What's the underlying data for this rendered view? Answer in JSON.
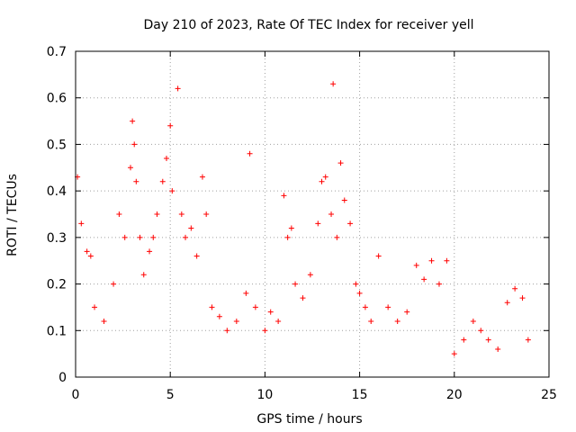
{
  "chart_data": {
    "type": "scatter",
    "title": "Day 210 of 2023, Rate Of TEC Index for receiver yell",
    "xlabel": "GPS time / hours",
    "ylabel": "ROTI / TECUs",
    "xlim": [
      0,
      25
    ],
    "ylim": [
      0,
      0.7
    ],
    "xticks": [
      0,
      5,
      10,
      15,
      20,
      25
    ],
    "yticks": [
      0,
      0.1,
      0.2,
      0.3,
      0.4,
      0.5,
      0.6,
      0.7
    ],
    "grid": true,
    "marker": "+",
    "color": "#ff0000",
    "series": [
      {
        "name": "ROTI",
        "x": [
          0.1,
          0.3,
          0.6,
          0.8,
          1.0,
          1.5,
          2.0,
          2.3,
          2.6,
          2.9,
          3.0,
          3.1,
          3.2,
          3.4,
          3.6,
          3.9,
          4.1,
          4.3,
          4.6,
          4.8,
          5.0,
          5.1,
          5.4,
          5.6,
          5.8,
          6.1,
          6.4,
          6.7,
          6.9,
          7.2,
          7.6,
          8.0,
          8.5,
          9.0,
          9.2,
          9.5,
          10.0,
          10.3,
          10.7,
          11.0,
          11.2,
          11.4,
          11.6,
          12.0,
          12.4,
          12.8,
          13.0,
          13.2,
          13.5,
          13.6,
          13.8,
          14.0,
          14.2,
          14.5,
          14.8,
          15.0,
          15.3,
          15.6,
          16.0,
          16.5,
          17.0,
          17.5,
          18.0,
          18.4,
          18.8,
          19.2,
          19.6,
          20.0,
          20.5,
          21.0,
          21.4,
          21.8,
          22.3,
          22.8,
          23.2,
          23.6,
          23.9
        ],
        "y": [
          0.43,
          0.33,
          0.27,
          0.26,
          0.15,
          0.12,
          0.2,
          0.35,
          0.3,
          0.45,
          0.55,
          0.5,
          0.42,
          0.3,
          0.22,
          0.27,
          0.3,
          0.35,
          0.42,
          0.47,
          0.54,
          0.4,
          0.62,
          0.35,
          0.3,
          0.32,
          0.26,
          0.43,
          0.35,
          0.15,
          0.13,
          0.1,
          0.12,
          0.18,
          0.48,
          0.15,
          0.1,
          0.14,
          0.12,
          0.39,
          0.3,
          0.32,
          0.2,
          0.17,
          0.22,
          0.33,
          0.42,
          0.43,
          0.35,
          0.63,
          0.3,
          0.46,
          0.38,
          0.33,
          0.2,
          0.18,
          0.15,
          0.12,
          0.26,
          0.15,
          0.12,
          0.14,
          0.24,
          0.21,
          0.25,
          0.2,
          0.25,
          0.05,
          0.08,
          0.12,
          0.1,
          0.08,
          0.06,
          0.16,
          0.19,
          0.17,
          0.08
        ]
      }
    ]
  }
}
